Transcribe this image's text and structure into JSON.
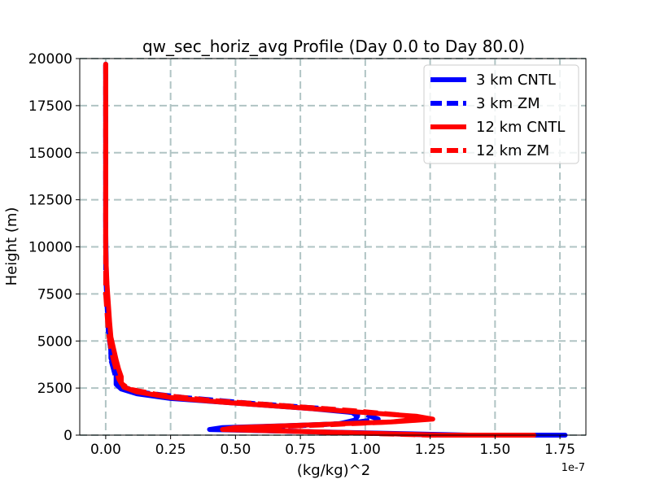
{
  "chart_data": {
    "type": "line",
    "title": "qw_sec_horiz_avg Profile (Day 0.0 to Day 80.0)",
    "xlabel": "(kg/kg)^2",
    "ylabel": "Height (m)",
    "x_offset_label": "1e-7",
    "x_scale": 1e-07,
    "xlim": [
      -0.1,
      1.85
    ],
    "ylim": [
      0,
      20000
    ],
    "xticks": [
      0.0,
      0.25,
      0.5,
      0.75,
      1.0,
      1.25,
      1.5,
      1.75
    ],
    "xtick_labels": [
      "0.00",
      "0.25",
      "0.50",
      "0.75",
      "1.00",
      "1.25",
      "1.50",
      "1.75"
    ],
    "yticks": [
      0,
      2500,
      5000,
      7500,
      10000,
      12500,
      15000,
      17500,
      20000
    ],
    "ytick_labels": [
      "0",
      "2500",
      "5000",
      "7500",
      "10000",
      "12500",
      "15000",
      "17500",
      "20000"
    ],
    "grid": true,
    "legend_position": "top-right",
    "series": [
      {
        "name": "3 km CNTL",
        "color": "#0000ff",
        "style": "solid",
        "points": [
          [
            1.77,
            0
          ],
          [
            1.4,
            0
          ],
          [
            0.4,
            300
          ],
          [
            0.45,
            400
          ],
          [
            0.7,
            500
          ],
          [
            0.9,
            600
          ],
          [
            0.96,
            800
          ],
          [
            0.97,
            1000
          ],
          [
            0.95,
            1200
          ],
          [
            0.8,
            1400
          ],
          [
            0.5,
            1700
          ],
          [
            0.25,
            1950
          ],
          [
            0.12,
            2200
          ],
          [
            0.06,
            2450
          ],
          [
            0.04,
            2700
          ],
          [
            0.04,
            3000
          ],
          [
            0.04,
            3300
          ],
          [
            0.03,
            3700
          ],
          [
            0.02,
            4100
          ],
          [
            0.02,
            4500
          ],
          [
            0.015,
            5000
          ],
          [
            0.01,
            6000
          ],
          [
            0.005,
            7000
          ],
          [
            0.003,
            8000
          ],
          [
            0.002,
            9000
          ],
          [
            0.001,
            10000
          ],
          [
            0.0,
            11000
          ],
          [
            0.0,
            13000
          ],
          [
            0.0,
            15000
          ],
          [
            0.0,
            17500
          ],
          [
            0.0,
            19700
          ]
        ]
      },
      {
        "name": "3 km ZM",
        "color": "#0000ff",
        "style": "dashed",
        "points": [
          [
            1.65,
            0
          ],
          [
            1.3,
            0
          ],
          [
            0.45,
            300
          ],
          [
            0.5,
            400
          ],
          [
            0.75,
            500
          ],
          [
            0.95,
            650
          ],
          [
            1.05,
            850
          ],
          [
            1.0,
            1100
          ],
          [
            0.85,
            1400
          ],
          [
            0.55,
            1700
          ],
          [
            0.3,
            2000
          ],
          [
            0.15,
            2250
          ],
          [
            0.08,
            2500
          ],
          [
            0.05,
            2750
          ],
          [
            0.04,
            3000
          ],
          [
            0.03,
            3500
          ],
          [
            0.02,
            4000
          ],
          [
            0.02,
            4500
          ],
          [
            0.01,
            5500
          ],
          [
            0.005,
            7000
          ],
          [
            0.0,
            8500
          ],
          [
            0.0,
            10000
          ],
          [
            0.0,
            13000
          ],
          [
            0.0,
            16000
          ],
          [
            0.0,
            19700
          ]
        ]
      },
      {
        "name": "12 km CNTL",
        "color": "#ff0000",
        "style": "solid",
        "points": [
          [
            1.65,
            0
          ],
          [
            1.3,
            0
          ],
          [
            0.45,
            300
          ],
          [
            0.5,
            400
          ],
          [
            0.8,
            550
          ],
          [
            1.1,
            700
          ],
          [
            1.26,
            850
          ],
          [
            1.2,
            1000
          ],
          [
            1.0,
            1200
          ],
          [
            0.75,
            1450
          ],
          [
            0.45,
            1750
          ],
          [
            0.25,
            2000
          ],
          [
            0.12,
            2300
          ],
          [
            0.07,
            2550
          ],
          [
            0.06,
            2800
          ],
          [
            0.06,
            3100
          ],
          [
            0.05,
            3500
          ],
          [
            0.04,
            4000
          ],
          [
            0.03,
            4600
          ],
          [
            0.02,
            5200
          ],
          [
            0.015,
            6000
          ],
          [
            0.01,
            7000
          ],
          [
            0.005,
            8000
          ],
          [
            0.002,
            9000
          ],
          [
            0.0,
            10000
          ],
          [
            0.0,
            12000
          ],
          [
            0.0,
            15000
          ],
          [
            0.0,
            17500
          ],
          [
            0.0,
            19700
          ]
        ]
      },
      {
        "name": "12 km ZM",
        "color": "#ff0000",
        "style": "dashed",
        "points": [
          [
            1.6,
            0
          ],
          [
            1.25,
            0
          ],
          [
            0.5,
            300
          ],
          [
            0.55,
            400
          ],
          [
            0.85,
            550
          ],
          [
            1.1,
            700
          ],
          [
            1.2,
            850
          ],
          [
            1.15,
            1050
          ],
          [
            0.95,
            1300
          ],
          [
            0.7,
            1550
          ],
          [
            0.4,
            1850
          ],
          [
            0.2,
            2150
          ],
          [
            0.09,
            2450
          ],
          [
            0.06,
            2750
          ],
          [
            0.05,
            3000
          ],
          [
            0.04,
            3500
          ],
          [
            0.03,
            4000
          ],
          [
            0.02,
            4600
          ],
          [
            0.01,
            5500
          ],
          [
            0.005,
            6500
          ],
          [
            0.0,
            7500
          ],
          [
            0.0,
            10000
          ],
          [
            0.0,
            13000
          ],
          [
            0.0,
            16000
          ],
          [
            0.0,
            19700
          ]
        ]
      }
    ]
  }
}
